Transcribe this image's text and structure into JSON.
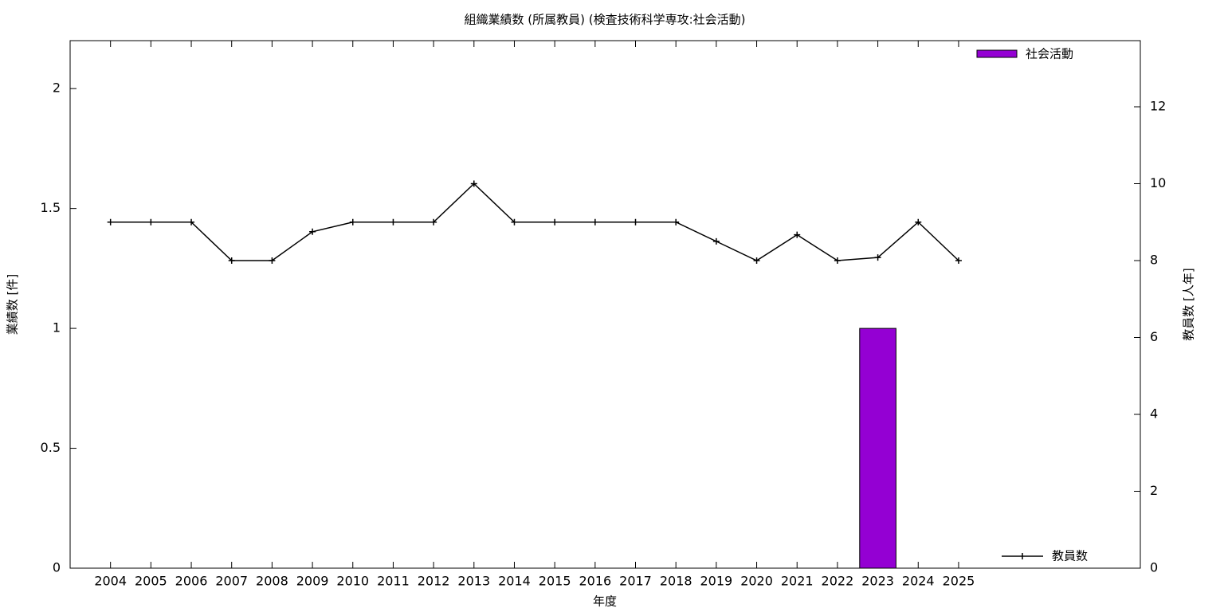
{
  "chart_data": {
    "type": "bar",
    "title": "組織業績数 (所属教員) (検査技術科学専攻:社会活動)",
    "xlabel": "年度",
    "ylabel": "業績数 [件]",
    "y2label": "教員数 [人年]",
    "xlim": [
      2003,
      2029.5
    ],
    "xticks": [
      2004,
      2005,
      2006,
      2007,
      2008,
      2009,
      2010,
      2011,
      2012,
      2013,
      2014,
      2015,
      2016,
      2017,
      2018,
      2019,
      2020,
      2021,
      2022,
      2023,
      2024,
      2025
    ],
    "ylim": [
      0,
      2.2
    ],
    "yticks": [
      0,
      0.5,
      1,
      1.5,
      2
    ],
    "y2lim": [
      0,
      13.72
    ],
    "y2ticks": [
      0,
      2,
      4,
      6,
      8,
      10,
      12
    ],
    "series": [
      {
        "name": "社会活動",
        "type": "bar",
        "color": "#9400d3",
        "x": [
          2023
        ],
        "values": [
          1
        ]
      },
      {
        "name": "教員数",
        "type": "line",
        "axis": "y2",
        "color": "#000000",
        "x": [
          2004,
          2005,
          2006,
          2007,
          2008,
          2009,
          2010,
          2011,
          2012,
          2013,
          2014,
          2015,
          2016,
          2017,
          2018,
          2019,
          2020,
          2021,
          2022,
          2023,
          2024,
          2025
        ],
        "values": [
          9,
          9,
          9,
          8,
          8,
          8.75,
          9,
          9,
          9,
          10,
          9,
          9,
          9,
          9,
          9,
          8.5,
          8,
          8.67,
          8,
          8.08,
          9,
          8
        ]
      }
    ]
  }
}
